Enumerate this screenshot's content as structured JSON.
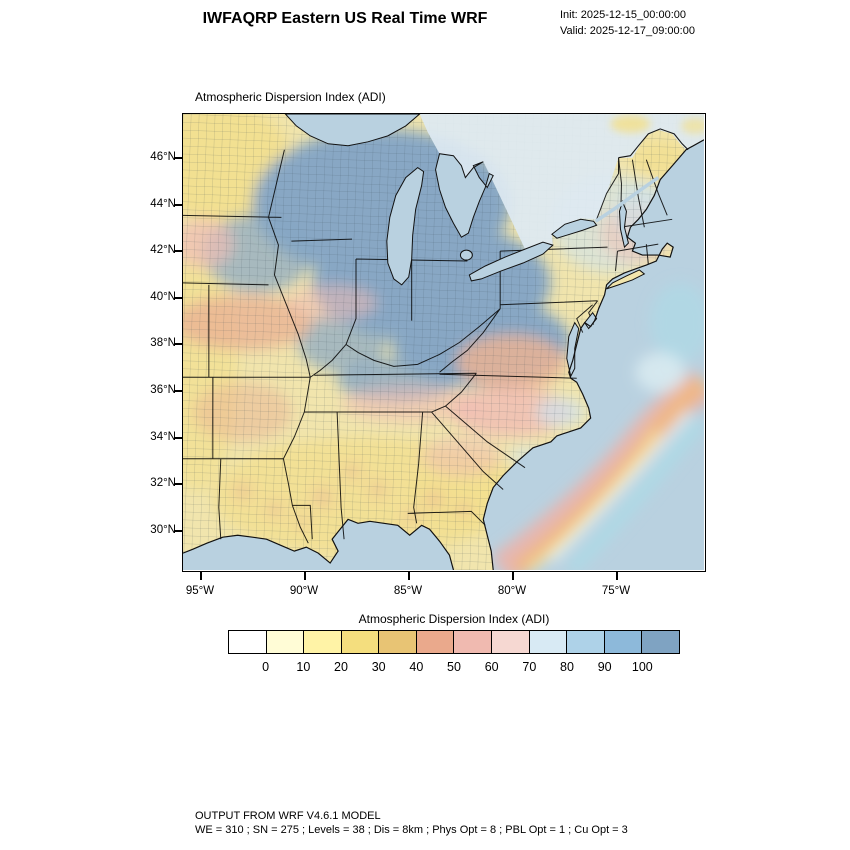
{
  "header": {
    "title": "IWFAQRP Eastern US Real Time WRF",
    "init": "Init: 2025-12-15_00:00:00",
    "valid": "Valid: 2025-12-17_09:00:00"
  },
  "map": {
    "title": "Atmospheric Dispersion Index   (ADI)",
    "lat_labels": [
      "46°N",
      "44°N",
      "42°N",
      "40°N",
      "38°N",
      "36°N",
      "34°N",
      "32°N",
      "30°N"
    ],
    "lon_labels": [
      "95°W",
      "90°W",
      "85°W",
      "80°W",
      "75°W"
    ]
  },
  "colorbar": {
    "title": "Atmospheric Dispersion Index  (ADI)",
    "ticks": [
      "0",
      "10",
      "20",
      "30",
      "40",
      "50",
      "60",
      "70",
      "80",
      "90",
      "100"
    ],
    "colors": [
      "#ffffff",
      "#fffcd6",
      "#fff3a6",
      "#f4de7e",
      "#e8c474",
      "#eaa98c",
      "#f0bab0",
      "#f6d8d2",
      "#d8eaf4",
      "#aed2e8",
      "#8db9da",
      "#7fa3c2"
    ]
  },
  "footer": {
    "line1": "OUTPUT FROM WRF V4.6.1 MODEL",
    "line2": "WE = 310 ; SN = 275 ; Levels = 38 ; Dis = 8km ; Phys Opt = 8 ; PBL Opt = 1 ; Cu Opt = 3"
  },
  "palette": {
    "ocean": "#b9d1e0",
    "land": "#f1e5ad",
    "high_blue": "#88a7c4",
    "pale_blue": "#cfe2ef",
    "yellow": "#f2df8e",
    "salmon": "#eab394",
    "pink": "#f0bcb4",
    "canada": "#dde9f2",
    "gulf_orange": "#f2b87c",
    "gulf_pink": "#efb2a8",
    "gulf_yellow": "#f6e49c",
    "cyan": "#a9dde9",
    "white_streak": "#e8f6f8"
  }
}
